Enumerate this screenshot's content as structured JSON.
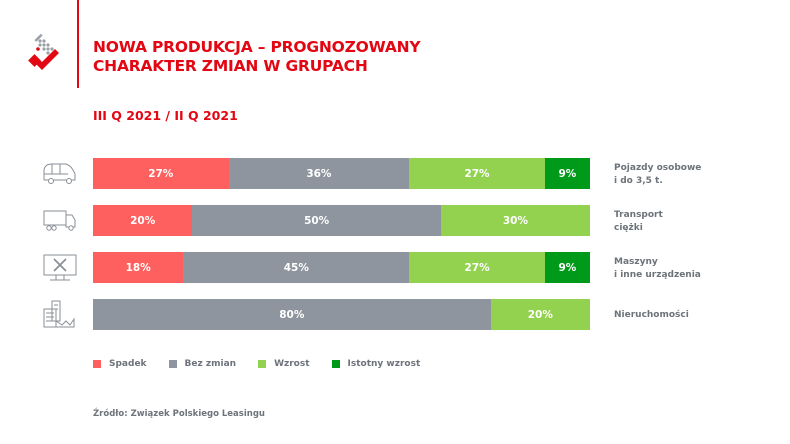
{
  "header": {
    "title_line1": "NOWA PRODUKCJA – PROGNOZOWANY",
    "title_line2": "CHARAKTER ZMIAN W GRUPACH",
    "subtitle": "III Q 2021 / II Q 2021"
  },
  "colors": {
    "brand": "#e30613",
    "Spadek": "#fe6060",
    "Bez zmian": "#8e959f",
    "Wzrost": "#93d24f",
    "Istotny wzrost": "#009a1a"
  },
  "chart_data": {
    "type": "bar",
    "orientation": "horizontal-stacked-100",
    "categories": [
      {
        "line1": "Pojazdy osobowe",
        "line2": "i do 3,5 t.",
        "icon": "car-icon"
      },
      {
        "line1": "Transport",
        "line2": "ciężki",
        "icon": "truck-icon"
      },
      {
        "line1": "Maszyny",
        "line2": "i inne urządzenia",
        "icon": "machine-icon"
      },
      {
        "line1": "Nieruchomości",
        "line2": "",
        "icon": "building-icon"
      }
    ],
    "series": [
      {
        "name": "Spadek",
        "values": [
          27,
          20,
          18,
          0
        ]
      },
      {
        "name": "Bez zmian",
        "values": [
          36,
          50,
          45,
          80
        ]
      },
      {
        "name": "Wzrost",
        "values": [
          27,
          30,
          27,
          20
        ]
      },
      {
        "name": "Istotny wzrost",
        "values": [
          9,
          0,
          9,
          0
        ]
      }
    ],
    "legend": "bottom-left"
  },
  "source": "Źródło: Związek Polskiego Leasingu"
}
